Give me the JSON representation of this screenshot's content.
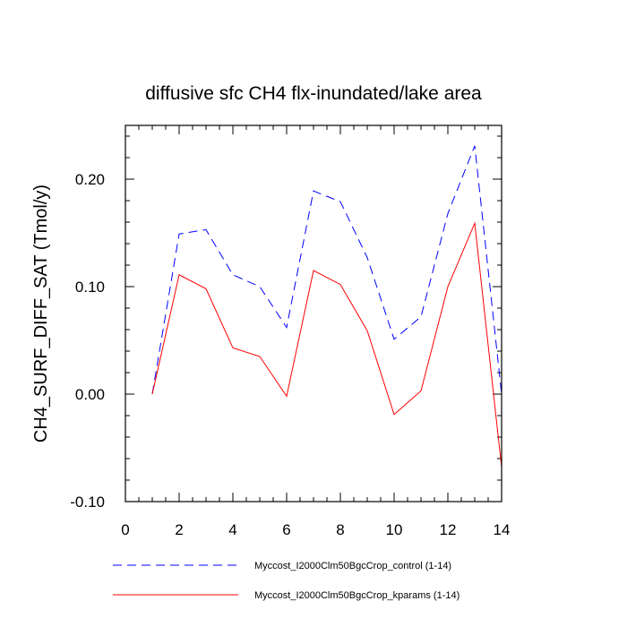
{
  "chart_data": {
    "type": "line",
    "title": "diffusive sfc CH4 flx-inundated/lake area",
    "xlabel": "",
    "ylabel": "CH4_SURF_DIFF_SAT  (Tmol/y)",
    "xlim": [
      0,
      14
    ],
    "ylim": [
      -0.1,
      0.25
    ],
    "x_ticks": [
      0,
      2,
      4,
      6,
      8,
      10,
      12,
      14
    ],
    "x_tick_labels": [
      "0",
      "2",
      "4",
      "6",
      "8",
      "10",
      "12",
      "14"
    ],
    "y_ticks": [
      -0.1,
      0.0,
      0.1,
      0.2
    ],
    "y_tick_labels": [
      "-0.10",
      "0.00",
      "0.10",
      "0.20"
    ],
    "grid": false,
    "legend_position": "bottom",
    "x": [
      1,
      2,
      3,
      4,
      5,
      6,
      7,
      8,
      9,
      10,
      11,
      12,
      13,
      14
    ],
    "series": [
      {
        "name": "Myccost_I2000Clm50BgcCrop_control (1-14)",
        "color": "#0000ff",
        "dash": "dashed",
        "values": [
          0.0,
          0.149,
          0.153,
          0.111,
          0.1,
          0.062,
          0.189,
          0.179,
          0.127,
          0.051,
          0.072,
          0.168,
          0.231,
          0.0
        ]
      },
      {
        "name": "Myccost_I2000Clm50BgcCrop_kparams (1-14)",
        "color": "#ff0000",
        "dash": "solid",
        "values": [
          0.0,
          0.111,
          0.098,
          0.043,
          0.035,
          -0.002,
          0.115,
          0.102,
          0.059,
          -0.019,
          0.003,
          0.1,
          0.159,
          -0.068
        ]
      }
    ]
  }
}
